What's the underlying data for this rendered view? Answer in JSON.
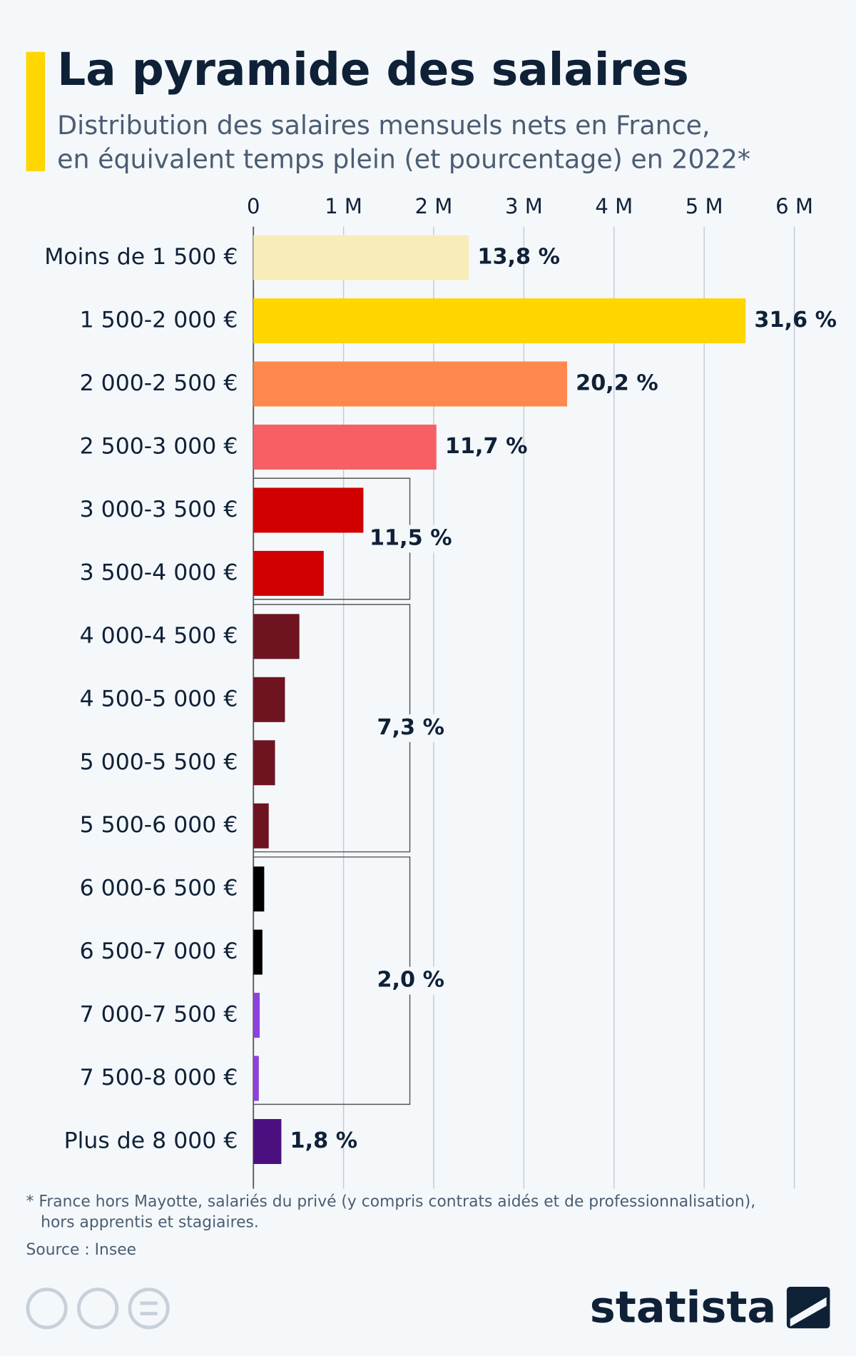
{
  "chart_data": {
    "type": "bar",
    "orientation": "horizontal",
    "title": "La pyramide des salaires",
    "subtitle": [
      "Distribution des salaires mensuels nets en France,",
      "en équivalent temps plein (et pourcentage) en 2022*"
    ],
    "categories": [
      "Moins de 1 500 €",
      "1 500-2 000 €",
      "2 000-2 500 €",
      "2 500-3 000 €",
      "3 000-3 500 €",
      "3 500-4 000 €",
      "4 000-4 500 €",
      "4 500-5 000 €",
      "5 000-5 500 €",
      "5 500-6 000 €",
      "6 000-6 500 €",
      "6 500-7 000 €",
      "7 000-7 500 €",
      "7 500-8 000 €",
      "Plus de 8 000 €"
    ],
    "values": [
      2.39,
      5.46,
      3.48,
      2.03,
      1.22,
      0.78,
      0.51,
      0.35,
      0.24,
      0.17,
      0.12,
      0.1,
      0.07,
      0.06,
      0.31
    ],
    "colors": [
      "#f8edb9",
      "#ffd600",
      "#ff884c",
      "#f66064",
      "#d00000",
      "#d00000",
      "#6e1420",
      "#6e1420",
      "#6e1420",
      "#6e1420",
      "#000000",
      "#000000",
      "#8e41db",
      "#8e41db",
      "#4b1080"
    ],
    "share_labels": [
      {
        "label": "13,8 %",
        "from": 0,
        "to": 0
      },
      {
        "label": "31,6 %",
        "from": 1,
        "to": 1
      },
      {
        "label": "20,2 %",
        "from": 2,
        "to": 2
      },
      {
        "label": "11,7 %",
        "from": 3,
        "to": 3
      },
      {
        "label": "11,5 %",
        "from": 4,
        "to": 5
      },
      {
        "label": "7,3 %",
        "from": 6,
        "to": 9
      },
      {
        "label": "2,0 %",
        "from": 10,
        "to": 13
      },
      {
        "label": "1,8 %",
        "from": 14,
        "to": 14
      }
    ],
    "xlim": [
      0,
      6.3
    ],
    "xticks": [
      0,
      {
        "value": 1,
        "label": "1 M"
      },
      {
        "value": 2,
        "label": "2 M"
      },
      {
        "value": 3,
        "label": "3 M"
      },
      {
        "value": 4,
        "label": "4 M"
      },
      {
        "value": 5,
        "label": "5 M"
      },
      {
        "value": 6,
        "label": "6 M"
      }
    ],
    "grid": true,
    "footnote": [
      "* France hors Mayotte, salariés du privé (y compris contrats aidés et de professionnalisation),",
      "hors apprentis et stagiaires."
    ],
    "source": "Source : Insee",
    "brand": "statista"
  }
}
